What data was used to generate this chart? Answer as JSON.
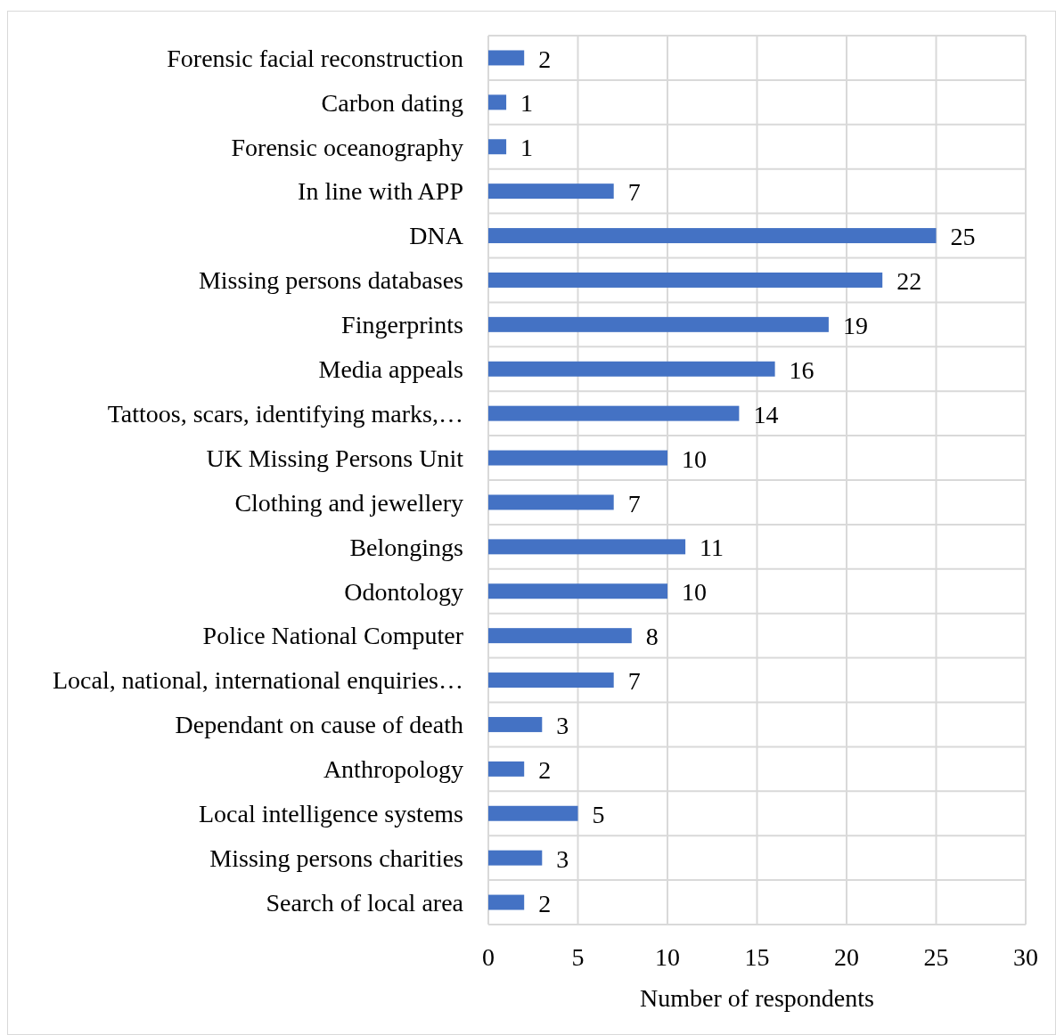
{
  "chart_data": {
    "type": "bar",
    "orientation": "horizontal",
    "xlabel": "Number of respondents",
    "categories": [
      "Forensic facial reconstruction",
      "Carbon dating",
      "Forensic oceanography",
      "In line with APP",
      "DNA",
      "Missing persons databases",
      "Fingerprints",
      "Media appeals",
      "Tattoos, scars, identifying marks,…",
      "UK Missing Persons Unit",
      "Clothing and jewellery",
      "Belongings",
      "Odontology",
      "Police National Computer",
      "Local, national, international enquiries…",
      "Dependant on cause of death",
      "Anthropology",
      "Local intelligence systems",
      "Missing persons charities",
      "Search of local area"
    ],
    "values": [
      2,
      1,
      1,
      7,
      25,
      22,
      19,
      16,
      14,
      10,
      7,
      11,
      10,
      8,
      7,
      3,
      2,
      5,
      3,
      2
    ],
    "color": "#4472c4",
    "xlim": [
      0,
      30
    ],
    "xticks": [
      0,
      5,
      10,
      15,
      20,
      25,
      30
    ],
    "grid": true,
    "data_labels": true
  }
}
